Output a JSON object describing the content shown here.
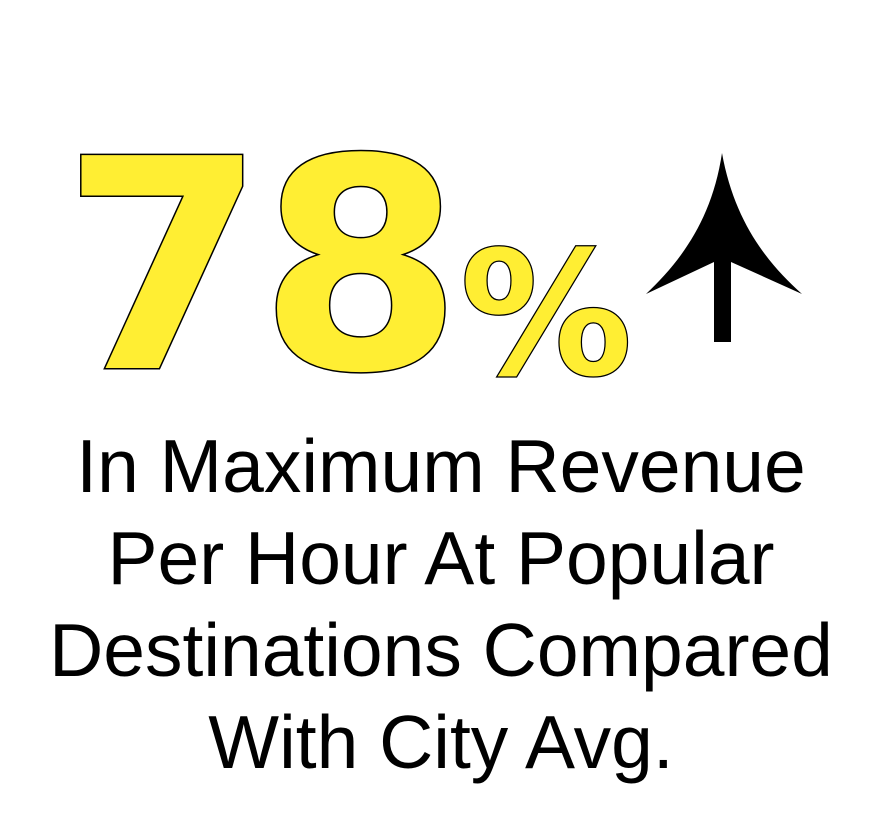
{
  "stat": {
    "number": "78",
    "unit": "%",
    "trend_icon": "arrow-up-icon"
  },
  "caption": {
    "lines": [
      "In Maximum Revenue",
      "Per Hour At Popular",
      "Destinations Compared",
      "With City Avg."
    ]
  },
  "colors": {
    "highlight": "#FFEE33",
    "outline": "#000000",
    "text": "#000000",
    "background": "#FFFFFF"
  }
}
